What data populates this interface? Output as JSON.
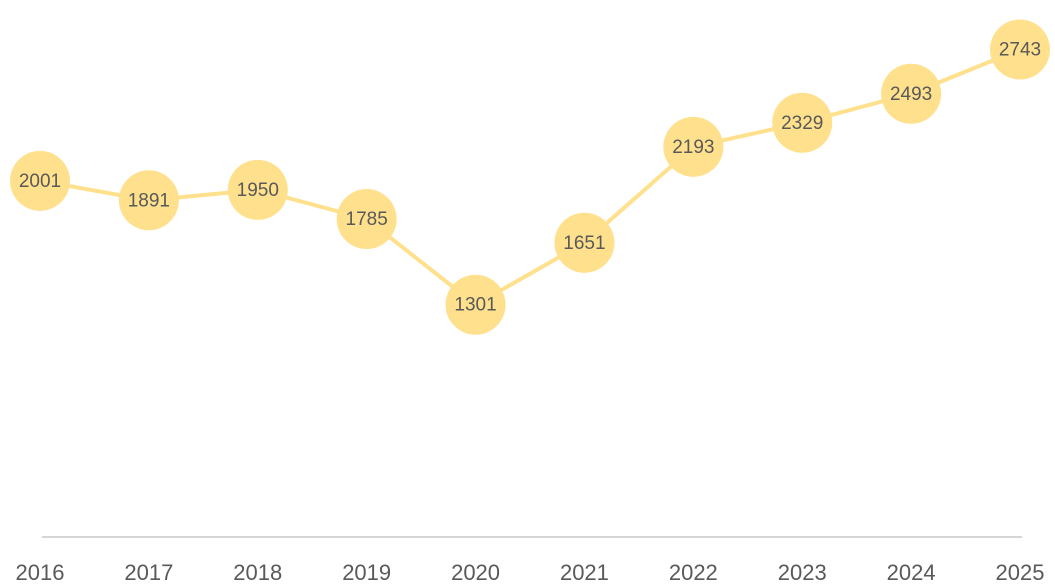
{
  "chart_data": {
    "type": "line",
    "categories": [
      "2016",
      "2017",
      "2018",
      "2019",
      "2020",
      "2021",
      "2022",
      "2023",
      "2024",
      "2025"
    ],
    "values": [
      2001,
      1891,
      1950,
      1785,
      1301,
      1651,
      2193,
      2329,
      2493,
      2743
    ],
    "color": "#ffe08c",
    "ylim": [
      0,
      3000
    ]
  }
}
